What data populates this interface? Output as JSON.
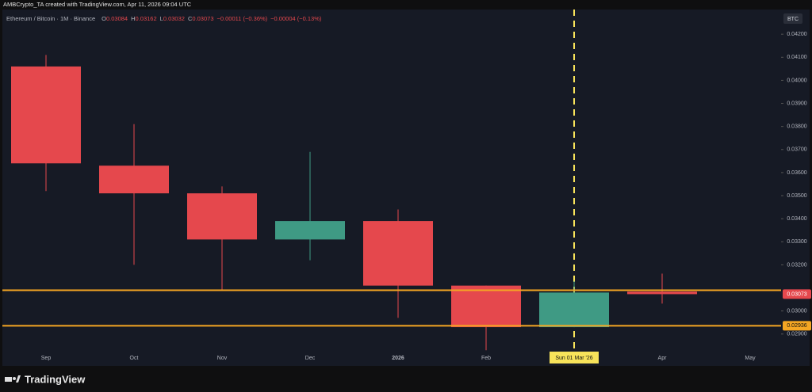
{
  "watermark": "AMBCrypto_TA created with TradingView.com, Apr 11, 2026 09:04 UTC",
  "chart_data": {
    "type": "candlestick",
    "symbol": "Ethereum / Bitcoin · 1M · Binance",
    "legend_items": [
      {
        "key": "O",
        "value": "0.03084"
      },
      {
        "key": "H",
        "value": "0.03162"
      },
      {
        "key": "L",
        "value": "0.03032"
      },
      {
        "key": "C",
        "value": "0.03073"
      }
    ],
    "changes": [
      "−0.00011 (−0.36%)",
      "−0.00004 (−0.13%)"
    ],
    "currency": "BTC",
    "categories": [
      "Sep",
      "Oct",
      "Nov",
      "Dec",
      "2026",
      "Feb",
      null,
      "Apr",
      "May"
    ],
    "open": [
      0.0406,
      0.0363,
      0.0351,
      0.0331,
      0.0339,
      0.0311,
      0.0293,
      0.03084,
      null
    ],
    "high": [
      0.0411,
      0.0381,
      0.0354,
      0.0369,
      0.0344,
      0.0311,
      0.0313,
      0.03162,
      null
    ],
    "low": [
      0.0352,
      0.032,
      0.0309,
      0.0322,
      0.0297,
      0.0283,
      0.0293,
      0.03032,
      null
    ],
    "close": [
      0.0364,
      0.0351,
      0.0331,
      0.0339,
      0.0311,
      0.0293,
      0.0308,
      0.03073,
      null
    ],
    "up_color": "#3f9a84",
    "down_color": "#e5484d",
    "ylim": [
      0.02762,
      0.04307
    ],
    "yticks": [
      {
        "value": 0.042,
        "label": "0.04200"
      },
      {
        "value": 0.041,
        "label": "0.04100"
      },
      {
        "value": 0.04,
        "label": "0.04000"
      },
      {
        "value": 0.039,
        "label": "0.03900"
      },
      {
        "value": 0.038,
        "label": "0.03800"
      },
      {
        "value": 0.037,
        "label": "0.03700"
      },
      {
        "value": 0.036,
        "label": "0.03600"
      },
      {
        "value": 0.035,
        "label": "0.03500"
      },
      {
        "value": 0.034,
        "label": "0.03400"
      },
      {
        "value": 0.033,
        "label": "0.03300"
      },
      {
        "value": 0.032,
        "label": "0.03200"
      },
      {
        "value": 0.03,
        "label": "0.03000"
      },
      {
        "value": 0.029,
        "label": "0.02900"
      }
    ],
    "hlines": [
      {
        "value": 0.0309,
        "color": "#f5a623"
      },
      {
        "value": 0.02936,
        "color": "#f5a623"
      }
    ],
    "price_tag": 0.03073,
    "price_tag_color": "#e5484d",
    "crosshair": {
      "index": 6,
      "label": "Sun 01 Mar '26",
      "color": "#f7e35a"
    }
  },
  "footer": {
    "brand": "TradingView"
  }
}
